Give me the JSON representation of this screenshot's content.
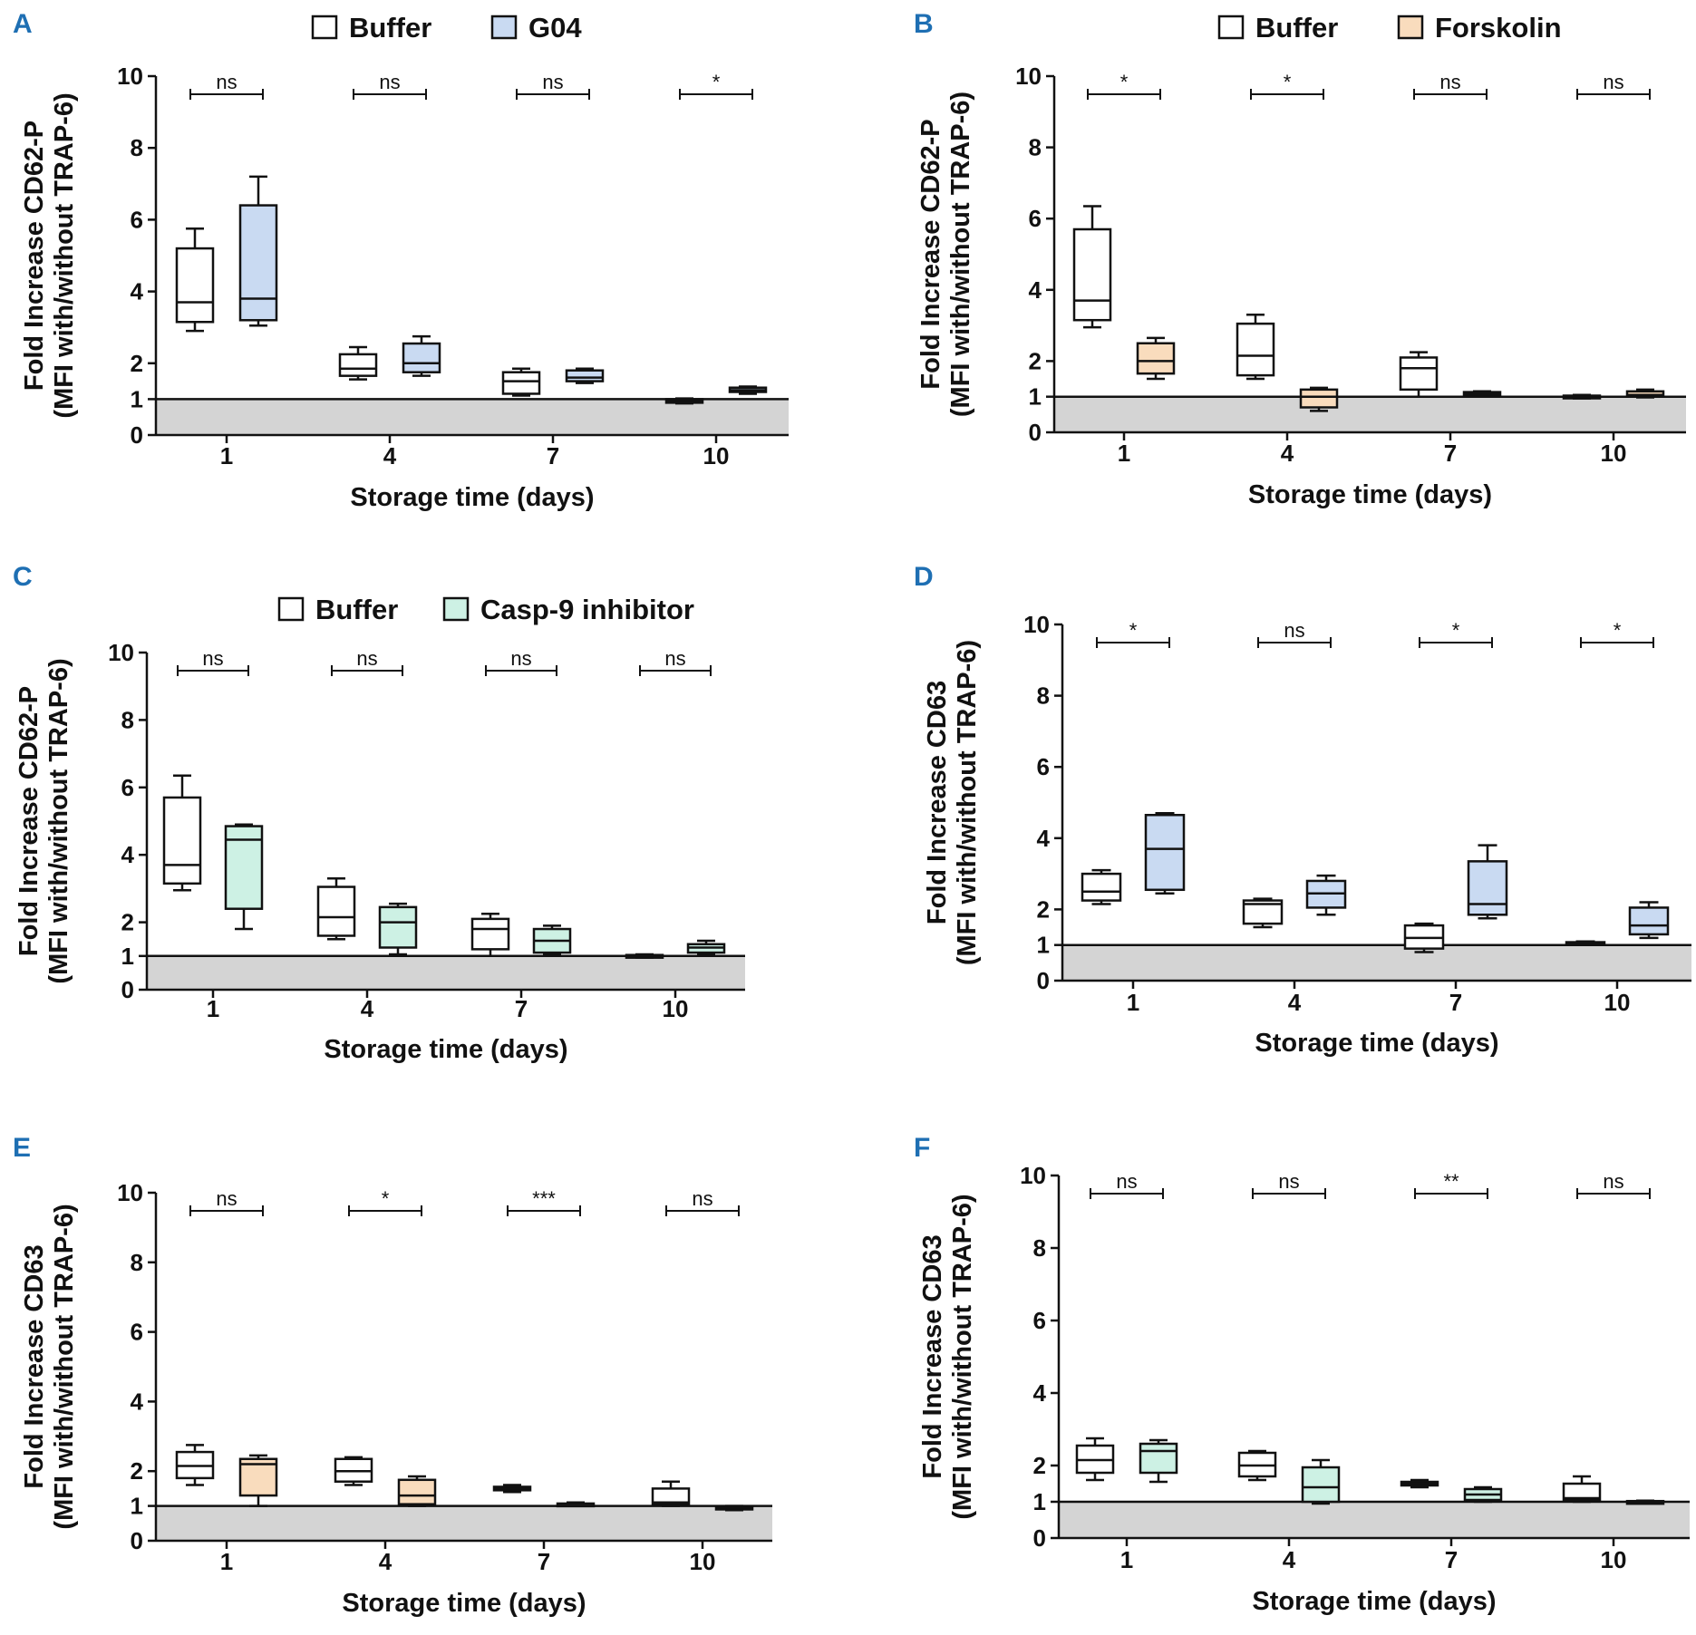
{
  "figure": {
    "colors": {
      "buffer": "#ffffff",
      "g04": "#c9daf2",
      "forskolin": "#f9dcbd",
      "casp9": "#cdf1e4",
      "shade": "#d4d4d4",
      "ink": "#111111",
      "letter": "#1e6fb3"
    }
  },
  "chart_data": [
    {
      "panel": "A",
      "type": "box",
      "legend": [
        {
          "label": "Buffer",
          "color": "#ffffff"
        },
        {
          "label": "G04",
          "color": "#c9daf2"
        }
      ],
      "ylabel_line1": "Fold Increase CD62-P",
      "ylabel_line2": "(MFI with/without TRAP-6)",
      "xlabel": "Storage time (days)",
      "categories": [
        "1",
        "4",
        "7",
        "10"
      ],
      "yticks": [
        "0",
        "1",
        "2",
        "4",
        "6",
        "8",
        "10"
      ],
      "ylim": [
        0,
        10
      ],
      "baseline": 1,
      "series": [
        {
          "name": "Buffer",
          "color": "#ffffff",
          "boxes": [
            [
              2.9,
              3.15,
              3.7,
              5.2,
              5.75
            ],
            [
              1.55,
              1.65,
              1.85,
              2.25,
              2.45
            ],
            [
              1.1,
              1.15,
              1.5,
              1.75,
              1.85
            ],
            [
              0.88,
              0.9,
              0.95,
              1.0,
              1.02
            ]
          ]
        },
        {
          "name": "G04",
          "color": "#c9daf2",
          "boxes": [
            [
              3.05,
              3.2,
              3.8,
              6.4,
              7.2
            ],
            [
              1.65,
              1.75,
              2.0,
              2.55,
              2.75
            ],
            [
              1.45,
              1.5,
              1.6,
              1.8,
              1.85
            ],
            [
              1.15,
              1.2,
              1.25,
              1.32,
              1.35
            ]
          ]
        }
      ],
      "significance": [
        "ns",
        "ns",
        "ns",
        "*"
      ]
    },
    {
      "panel": "B",
      "type": "box",
      "legend": [
        {
          "label": "Buffer",
          "color": "#ffffff"
        },
        {
          "label": "Forskolin",
          "color": "#f9dcbd"
        }
      ],
      "ylabel_line1": "Fold Increase CD62-P",
      "ylabel_line2": "(MFI with/without TRAP-6)",
      "xlabel": "Storage time (days)",
      "categories": [
        "1",
        "4",
        "7",
        "10"
      ],
      "yticks": [
        "0",
        "1",
        "2",
        "4",
        "6",
        "8",
        "10"
      ],
      "ylim": [
        0,
        10
      ],
      "baseline": 1,
      "series": [
        {
          "name": "Buffer",
          "color": "#ffffff",
          "boxes": [
            [
              2.95,
              3.15,
              3.7,
              5.7,
              6.35
            ],
            [
              1.5,
              1.6,
              2.15,
              3.05,
              3.3
            ],
            [
              1.0,
              1.2,
              1.8,
              2.1,
              2.25
            ],
            [
              0.95,
              0.97,
              1.0,
              1.03,
              1.05
            ]
          ]
        },
        {
          "name": "Forskolin",
          "color": "#f9dcbd",
          "boxes": [
            [
              1.5,
              1.65,
              2.0,
              2.5,
              2.65
            ],
            [
              0.6,
              0.7,
              1.0,
              1.2,
              1.25
            ],
            [
              1.05,
              1.08,
              1.1,
              1.13,
              1.15
            ],
            [
              0.98,
              1.0,
              1.05,
              1.15,
              1.2
            ]
          ]
        }
      ],
      "significance": [
        "*",
        "*",
        "ns",
        "ns"
      ]
    },
    {
      "panel": "C",
      "type": "box",
      "legend": [
        {
          "label": "Buffer",
          "color": "#ffffff"
        },
        {
          "label": "Casp-9 inhibitor",
          "color": "#cdf1e4"
        }
      ],
      "ylabel_line1": "Fold Increase CD62-P",
      "ylabel_line2": "(MFI with/without TRAP-6)",
      "xlabel": "Storage time (days)",
      "categories": [
        "1",
        "4",
        "7",
        "10"
      ],
      "yticks": [
        "0",
        "1",
        "2",
        "4",
        "6",
        "8",
        "10"
      ],
      "ylim": [
        0,
        10
      ],
      "baseline": 1,
      "series": [
        {
          "name": "Buffer",
          "color": "#ffffff",
          "boxes": [
            [
              2.95,
              3.15,
              3.7,
              5.7,
              6.35
            ],
            [
              1.5,
              1.6,
              2.15,
              3.05,
              3.3
            ],
            [
              1.0,
              1.2,
              1.8,
              2.1,
              2.25
            ],
            [
              0.95,
              0.97,
              1.0,
              1.03,
              1.05
            ]
          ]
        },
        {
          "name": "Casp-9 inhibitor",
          "color": "#cdf1e4",
          "boxes": [
            [
              1.8,
              2.4,
              4.45,
              4.85,
              4.9
            ],
            [
              1.05,
              1.25,
              2.0,
              2.45,
              2.55
            ],
            [
              1.05,
              1.1,
              1.45,
              1.8,
              1.9
            ],
            [
              1.05,
              1.1,
              1.25,
              1.35,
              1.45
            ]
          ]
        }
      ],
      "significance": [
        "ns",
        "ns",
        "ns",
        "ns"
      ]
    },
    {
      "panel": "D",
      "type": "box",
      "legend": [],
      "ylabel_line1": "Fold Increase CD63",
      "ylabel_line2": "(MFI with/without TRAP-6)",
      "xlabel": "Storage time (days)",
      "categories": [
        "1",
        "4",
        "7",
        "10"
      ],
      "yticks": [
        "0",
        "1",
        "2",
        "4",
        "6",
        "8",
        "10"
      ],
      "ylim": [
        0,
        10
      ],
      "baseline": 1,
      "series": [
        {
          "name": "Buffer",
          "color": "#ffffff",
          "boxes": [
            [
              2.15,
              2.25,
              2.5,
              3.0,
              3.1
            ],
            [
              1.5,
              1.6,
              2.15,
              2.25,
              2.3
            ],
            [
              0.8,
              0.9,
              1.2,
              1.55,
              1.6
            ],
            [
              1.0,
              1.02,
              1.05,
              1.08,
              1.1
            ]
          ]
        },
        {
          "name": "G04",
          "color": "#c9daf2",
          "boxes": [
            [
              2.45,
              2.55,
              3.7,
              4.65,
              4.7
            ],
            [
              1.85,
              2.05,
              2.45,
              2.8,
              2.95
            ],
            [
              1.75,
              1.85,
              2.15,
              3.35,
              3.8
            ],
            [
              1.2,
              1.3,
              1.55,
              2.05,
              2.2
            ]
          ]
        }
      ],
      "significance": [
        "*",
        "ns",
        "*",
        "*"
      ]
    },
    {
      "panel": "E",
      "type": "box",
      "legend": [],
      "ylabel_line1": "Fold Increase CD63",
      "ylabel_line2": "(MFI with/without TRAP-6)",
      "xlabel": "Storage time (days)",
      "categories": [
        "1",
        "4",
        "7",
        "10"
      ],
      "yticks": [
        "0",
        "1",
        "2",
        "4",
        "6",
        "8",
        "10"
      ],
      "ylim": [
        0,
        10
      ],
      "baseline": 1,
      "series": [
        {
          "name": "Buffer",
          "color": "#ffffff",
          "boxes": [
            [
              1.6,
              1.8,
              2.15,
              2.55,
              2.75
            ],
            [
              1.6,
              1.7,
              2.0,
              2.35,
              2.4
            ],
            [
              1.4,
              1.45,
              1.5,
              1.55,
              1.6
            ],
            [
              1.0,
              1.05,
              1.1,
              1.5,
              1.7
            ]
          ]
        },
        {
          "name": "Forskolin",
          "color": "#f9dcbd",
          "boxes": [
            [
              1.0,
              1.3,
              2.2,
              2.35,
              2.45
            ],
            [
              1.0,
              1.05,
              1.3,
              1.75,
              1.85
            ],
            [
              1.0,
              1.02,
              1.05,
              1.07,
              1.1
            ],
            [
              0.88,
              0.9,
              0.95,
              0.98,
              1.0
            ]
          ]
        }
      ],
      "significance": [
        "ns",
        "*",
        "***",
        "ns"
      ]
    },
    {
      "panel": "F",
      "type": "box",
      "legend": [],
      "ylabel_line1": "Fold Increase CD63",
      "ylabel_line2": "(MFI with/without TRAP-6)",
      "xlabel": "Storage time (days)",
      "categories": [
        "1",
        "4",
        "7",
        "10"
      ],
      "yticks": [
        "0",
        "1",
        "2",
        "4",
        "6",
        "8",
        "10"
      ],
      "ylim": [
        0,
        10
      ],
      "baseline": 1,
      "series": [
        {
          "name": "Buffer",
          "color": "#ffffff",
          "boxes": [
            [
              1.6,
              1.8,
              2.15,
              2.55,
              2.75
            ],
            [
              1.6,
              1.7,
              2.0,
              2.35,
              2.4
            ],
            [
              1.4,
              1.45,
              1.5,
              1.55,
              1.6
            ],
            [
              1.0,
              1.05,
              1.1,
              1.5,
              1.7
            ]
          ]
        },
        {
          "name": "Casp-9 inhibitor",
          "color": "#cdf1e4",
          "boxes": [
            [
              1.55,
              1.8,
              2.4,
              2.6,
              2.7
            ],
            [
              0.95,
              1.0,
              1.4,
              1.95,
              2.15
            ],
            [
              1.0,
              1.05,
              1.2,
              1.35,
              1.4
            ],
            [
              0.98,
              1.0,
              1.0,
              1.02,
              1.03
            ]
          ]
        }
      ],
      "significance": [
        "ns",
        "ns",
        "**",
        "ns"
      ]
    }
  ]
}
